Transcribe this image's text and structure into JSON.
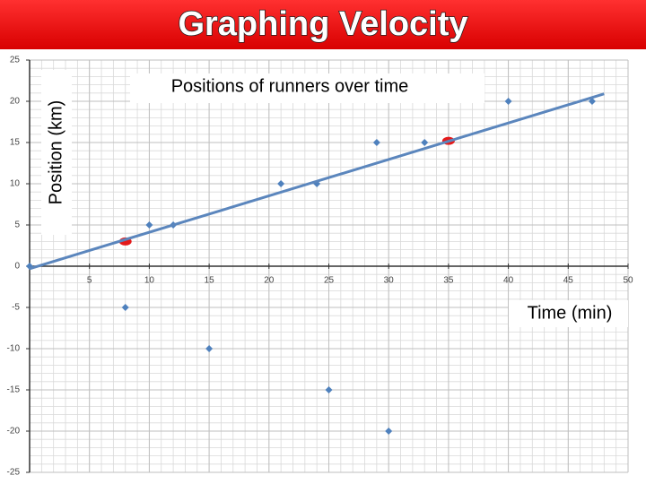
{
  "chart_data": {
    "type": "scatter",
    "slide_title": "Graphing Velocity",
    "title": "Positions of runners over time",
    "x_label": "Time (min)",
    "y_label": "Position (km)",
    "xlim": [
      0,
      50
    ],
    "ylim": [
      -25,
      25
    ],
    "xticks": [
      5,
      10,
      15,
      20,
      25,
      30,
      35,
      40,
      45,
      50
    ],
    "yticks": [
      -25,
      -20,
      -15,
      -10,
      -5,
      0,
      5,
      10,
      15,
      20,
      25
    ],
    "grid": true,
    "grid_minor": 1,
    "series": [
      {
        "color": "#4f81bd",
        "marker": "diamond",
        "x": [
          0,
          8,
          10,
          12,
          15,
          21,
          24,
          25,
          29,
          30,
          33,
          40,
          47
        ],
        "values": [
          0,
          -5,
          5,
          5,
          -10,
          10,
          10,
          -15,
          15,
          -20,
          15,
          20,
          20
        ]
      },
      {
        "color": "#e41a1a",
        "marker": "ellipse",
        "x": [
          8,
          35
        ],
        "values": [
          3,
          15.2
        ]
      },
      {
        "color": "#5b86bd",
        "marker": "line",
        "x": [
          0,
          48
        ],
        "values": [
          -0.3,
          20.9
        ]
      }
    ]
  }
}
